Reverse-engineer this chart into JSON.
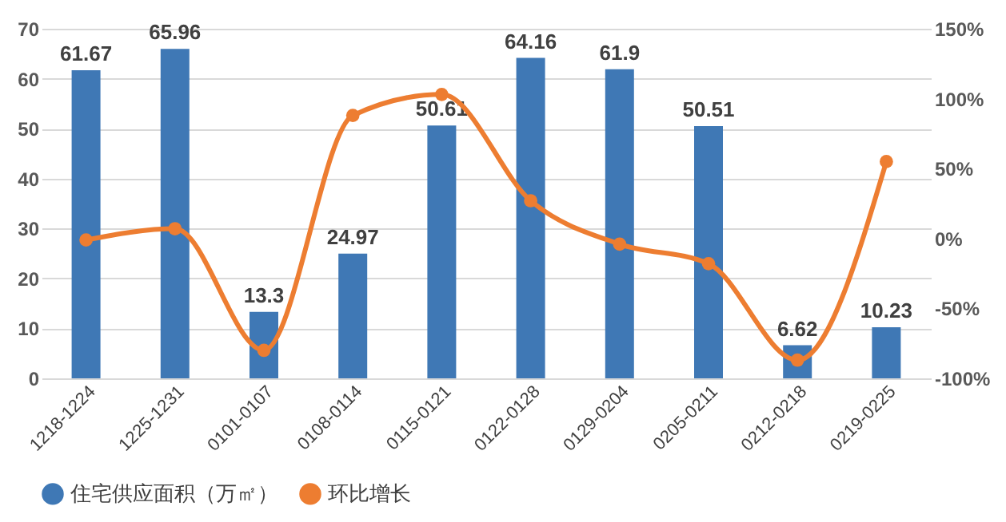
{
  "chart_data": {
    "type": "bar",
    "categories": [
      "1218-1224",
      "1225-1231",
      "0101-0107",
      "0108-0114",
      "0115-0121",
      "0122-0128",
      "0129-0204",
      "0205-0211",
      "0212-0218",
      "0219-0225"
    ],
    "series": [
      {
        "name": "住宅供应面积（万㎡）",
        "color": "#3f78b5",
        "values": [
          61.67,
          65.96,
          13.3,
          24.97,
          50.61,
          64.16,
          61.9,
          50.51,
          6.62,
          10.23
        ],
        "value_labels": [
          "61.67",
          "65.96",
          "13.3",
          "24.97",
          "50.61",
          "64.16",
          "61.9",
          "50.51",
          "6.62",
          "10.23"
        ]
      },
      {
        "name": "环比增长",
        "type": "line",
        "axis": "y2",
        "color": "#ed7d31",
        "marker": "circle",
        "line_style": "solid",
        "values": [
          -1,
          7,
          -80,
          88,
          103,
          27,
          -4,
          -18,
          -87,
          55
        ]
      }
    ],
    "ylim": [
      0,
      70
    ],
    "yticks": [
      0,
      10,
      20,
      30,
      40,
      50,
      60,
      70
    ],
    "y2lim": [
      -100,
      150
    ],
    "y2ticks": [
      {
        "value": -100,
        "label": "-100%"
      },
      {
        "value": -50,
        "label": "-50%"
      },
      {
        "value": 0,
        "label": "0%"
      },
      {
        "value": 50,
        "label": "50%"
      },
      {
        "value": 100,
        "label": "100%"
      },
      {
        "value": 150,
        "label": "150%"
      }
    ],
    "grid": "y",
    "legend": "bottom"
  }
}
